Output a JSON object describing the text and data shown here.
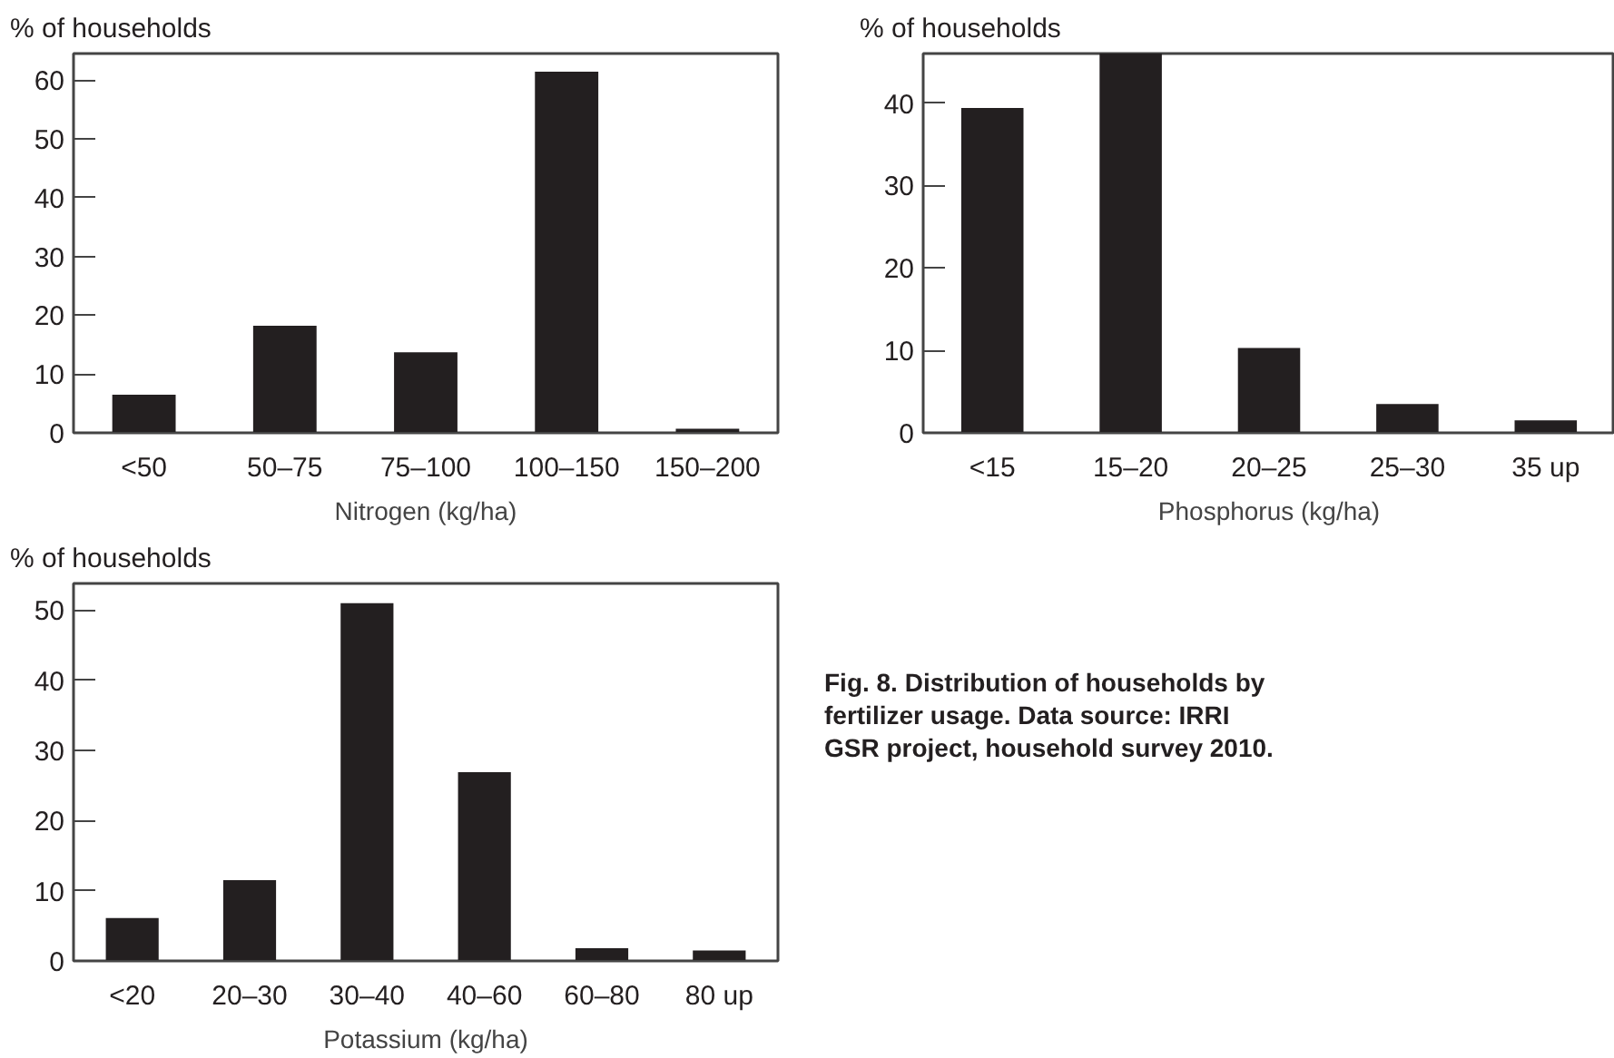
{
  "chart_data": [
    {
      "type": "bar",
      "xlabel": "Nitrogen (kg/ha)",
      "ylabel": "% of households",
      "categories": [
        "<50",
        "50–75",
        "75–100",
        "100–150",
        "150–200"
      ],
      "values": [
        6.5,
        18.2,
        13.7,
        61.4,
        0.7
      ],
      "color": "#231f20",
      "ylim": [
        0,
        64.5
      ],
      "yticks": [
        0,
        10,
        20,
        30,
        40,
        50,
        60
      ],
      "grid": false
    },
    {
      "type": "bar",
      "xlabel": "Phosphorus (kg/ha)",
      "ylabel": "% of households",
      "categories": [
        "<15",
        "15–20",
        "20–25",
        "25–30",
        "35 up"
      ],
      "values": [
        39.4,
        46,
        10.3,
        3.5,
        1.5
      ],
      "color": "#231f20",
      "ylim": [
        0,
        46
      ],
      "yticks": [
        0,
        10,
        20,
        30,
        40
      ],
      "grid": false
    },
    {
      "type": "bar",
      "xlabel": "Potassium (kg/ha)",
      "ylabel": "% of households",
      "categories": [
        "<20",
        "20–30",
        "30–40",
        "40–60",
        "60–80",
        "80 up"
      ],
      "values": [
        6.1,
        11.5,
        51.0,
        26.9,
        1.8,
        1.5
      ],
      "color": "#231f20",
      "ylim": [
        0,
        53.8
      ],
      "yticks": [
        0,
        10,
        20,
        30,
        40,
        50
      ],
      "grid": false
    },
    {
      "type": "other",
      "annotations": [
        "Fig. 8. Distribution of households by fertilizer usage. Data source: IRRI GSR project, household survey 2010."
      ]
    }
  ]
}
